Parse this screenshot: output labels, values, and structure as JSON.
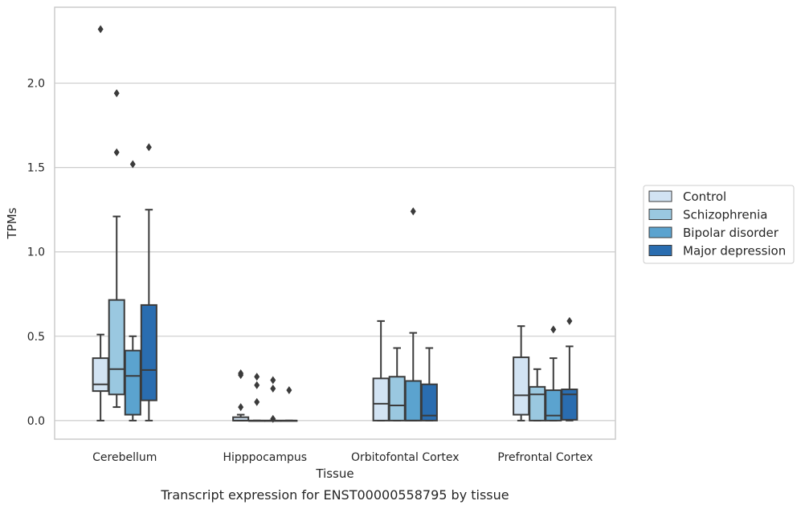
{
  "chart_data": {
    "type": "box",
    "xlabel": "Tissue",
    "ylabel": "TPMs",
    "caption": "Transcript expression for ENST00000558795 by tissue",
    "ylim": [
      -0.11,
      2.45
    ],
    "yticks": [
      0.0,
      0.5,
      1.0,
      1.5,
      2.0
    ],
    "ytick_labels": [
      "0.0",
      "0.5",
      "1.0",
      "1.5",
      "2.0"
    ],
    "grid": "horizontal",
    "legend_position": "right",
    "categories": [
      "Cerebellum",
      "Hipppocampus",
      "Orbitofontal Cortex",
      "Prefrontal Cortex"
    ],
    "series": [
      {
        "name": "Control",
        "color": "#d2e3f3",
        "boxes": [
          {
            "whislo": 0.0,
            "q1": 0.175,
            "med": 0.215,
            "q3": 0.37,
            "whishi": 0.51,
            "fliers": [
              2.32
            ]
          },
          {
            "whislo": 0.0,
            "q1": 0.0,
            "med": 0.0,
            "q3": 0.02,
            "whishi": 0.035,
            "fliers": [
              0.08,
              0.27,
              0.28
            ]
          },
          {
            "whislo": 0.0,
            "q1": 0.0,
            "med": 0.1,
            "q3": 0.25,
            "whishi": 0.59,
            "fliers": []
          },
          {
            "whislo": 0.0,
            "q1": 0.035,
            "med": 0.15,
            "q3": 0.375,
            "whishi": 0.56,
            "fliers": []
          }
        ]
      },
      {
        "name": "Schizophrenia",
        "color": "#9ac8e0",
        "boxes": [
          {
            "whislo": 0.08,
            "q1": 0.155,
            "med": 0.305,
            "q3": 0.715,
            "whishi": 1.21,
            "fliers": [
              1.59,
              1.94
            ]
          },
          {
            "whislo": 0.0,
            "q1": 0.0,
            "med": 0.0,
            "q3": 0.0,
            "whishi": 0.0,
            "fliers": [
              0.11,
              0.21,
              0.26
            ]
          },
          {
            "whislo": 0.0,
            "q1": 0.0,
            "med": 0.09,
            "q3": 0.26,
            "whishi": 0.43,
            "fliers": []
          },
          {
            "whislo": 0.0,
            "q1": 0.0,
            "med": 0.155,
            "q3": 0.2,
            "whishi": 0.305,
            "fliers": []
          }
        ]
      },
      {
        "name": "Bipolar disorder",
        "color": "#5ba3cf",
        "boxes": [
          {
            "whislo": 0.0,
            "q1": 0.035,
            "med": 0.265,
            "q3": 0.415,
            "whishi": 0.5,
            "fliers": [
              1.52
            ]
          },
          {
            "whislo": 0.0,
            "q1": 0.0,
            "med": 0.0,
            "q3": 0.0,
            "whishi": 0.0,
            "fliers": [
              0.01,
              0.19,
              0.24
            ]
          },
          {
            "whislo": 0.0,
            "q1": 0.0,
            "med": 0.0,
            "q3": 0.235,
            "whishi": 0.52,
            "fliers": [
              1.24
            ]
          },
          {
            "whislo": 0.0,
            "q1": 0.0,
            "med": 0.03,
            "q3": 0.18,
            "whishi": 0.37,
            "fliers": [
              0.54
            ]
          }
        ]
      },
      {
        "name": "Major depression",
        "color": "#2a6db0",
        "boxes": [
          {
            "whislo": 0.0,
            "q1": 0.12,
            "med": 0.3,
            "q3": 0.685,
            "whishi": 1.25,
            "fliers": [
              1.62
            ]
          },
          {
            "whislo": 0.0,
            "q1": 0.0,
            "med": 0.0,
            "q3": 0.0,
            "whishi": 0.0,
            "fliers": [
              0.18
            ]
          },
          {
            "whislo": 0.0,
            "q1": 0.0,
            "med": 0.03,
            "q3": 0.215,
            "whishi": 0.43,
            "fliers": []
          },
          {
            "whislo": 0.0,
            "q1": 0.005,
            "med": 0.155,
            "q3": 0.185,
            "whishi": 0.44,
            "fliers": [
              0.59
            ]
          }
        ]
      }
    ]
  }
}
